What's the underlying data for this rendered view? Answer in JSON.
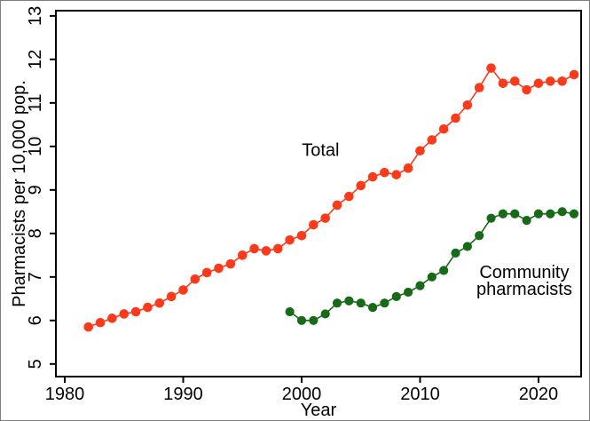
{
  "figure": {
    "background": "#ffffff",
    "border_color": "#7d7d7d",
    "axis_color": "#000000",
    "text_color": "#000000"
  },
  "chart_data": {
    "type": "line",
    "title": "",
    "xlabel": "Year",
    "ylabel": "Pharmacists per 10,000 pop.",
    "grid": false,
    "legend_position": "inline-annotations",
    "xlim": [
      1979.25,
      2023.6
    ],
    "ylim": [
      4.71,
      13.12
    ],
    "x_ticks": [
      1980,
      1990,
      2000,
      2010,
      2020
    ],
    "y_ticks": [
      5,
      6,
      7,
      8,
      9,
      10,
      11,
      12,
      13
    ],
    "series": [
      {
        "name": "total",
        "label": "Total",
        "color": "#f93b1b",
        "years": [
          1982,
          1983,
          1984,
          1985,
          1986,
          1987,
          1988,
          1989,
          1990,
          1991,
          1992,
          1993,
          1994,
          1995,
          1996,
          1997,
          1998,
          1999,
          2000,
          2001,
          2002,
          2003,
          2004,
          2005,
          2006,
          2007,
          2008,
          2009,
          2010,
          2011,
          2012,
          2013,
          2014,
          2015,
          2016,
          2017,
          2018,
          2019,
          2020,
          2021,
          2022,
          2023
        ],
        "values": [
          5.85,
          5.95,
          6.05,
          6.15,
          6.2,
          6.3,
          6.4,
          6.55,
          6.7,
          6.95,
          7.1,
          7.2,
          7.3,
          7.5,
          7.65,
          7.6,
          7.65,
          7.85,
          7.95,
          8.2,
          8.35,
          8.65,
          8.85,
          9.1,
          9.3,
          9.4,
          9.35,
          9.5,
          9.9,
          10.15,
          10.4,
          10.65,
          10.95,
          11.35,
          11.8,
          11.45,
          11.5,
          11.3,
          11.45,
          11.5,
          11.5,
          11.65
        ]
      },
      {
        "name": "community",
        "label": "Community pharmacists",
        "color": "#176a17",
        "years": [
          1999,
          2000,
          2001,
          2002,
          2003,
          2004,
          2005,
          2006,
          2007,
          2008,
          2009,
          2010,
          2011,
          2012,
          2013,
          2014,
          2015,
          2016,
          2017,
          2018,
          2019,
          2020,
          2021,
          2022,
          2023
        ],
        "values": [
          6.2,
          6.0,
          6.0,
          6.15,
          6.4,
          6.45,
          6.4,
          6.3,
          6.4,
          6.55,
          6.65,
          6.8,
          7.0,
          7.15,
          7.55,
          7.7,
          7.95,
          8.35,
          8.45,
          8.45,
          8.3,
          8.45,
          8.45,
          8.5,
          8.45
        ]
      }
    ],
    "annotations": [
      {
        "lines": [
          "Total"
        ],
        "year": 2001.6,
        "value": 9.9,
        "series": "total"
      },
      {
        "lines": [
          "Community",
          "pharmacists"
        ],
        "year": 2018.8,
        "value": 6.9,
        "series": "community"
      }
    ]
  }
}
